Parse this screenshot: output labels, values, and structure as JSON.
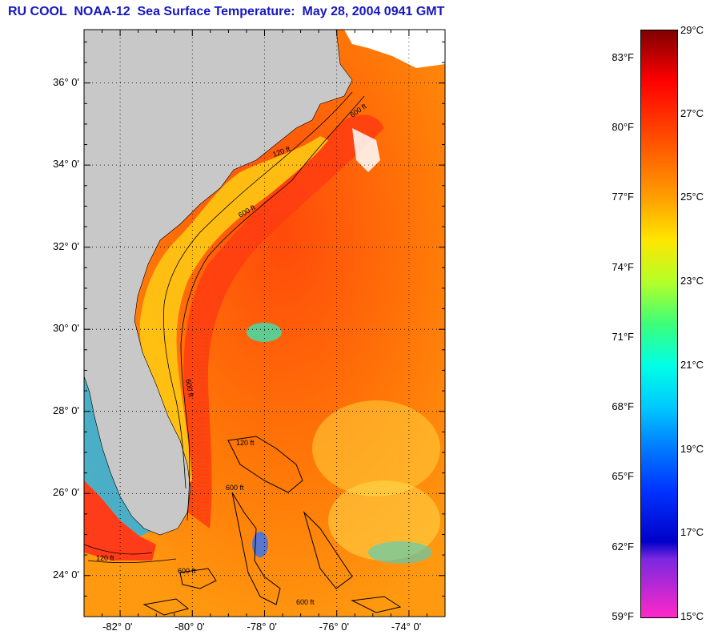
{
  "title": "RU COOL  NOAA-12  Sea Surface Temperature:  May 28, 2004 0941 GMT",
  "map": {
    "region": "US Southeast Atlantic coast",
    "lat_labels": [
      "36° 0'",
      "34° 0'",
      "32° 0'",
      "30° 0'",
      "28° 0'",
      "26° 0'",
      "24° 0'"
    ],
    "lon_labels": [
      "-82° 0'",
      "-80° 0'",
      "-78° 0'",
      "-76° 0'",
      "-74° 0'"
    ],
    "lat_values": [
      36,
      34,
      32,
      30,
      28,
      26,
      24
    ],
    "lon_values": [
      -82,
      -80,
      -78,
      -76,
      -74
    ],
    "lat_range": [
      23,
      37.3
    ],
    "lon_range": [
      -83,
      -73
    ],
    "contour_labels": [
      "600 ft",
      "120 ft",
      "600 ft",
      "600 ft",
      "120 ft",
      "600 ft",
      "600 ft",
      "600 ft",
      "120 ft"
    ],
    "colors": {
      "land": "#c8c8c8",
      "ocean_warm": "#ff5a10",
      "ocean_mid": "#ff8c00",
      "coastal": "#ffc800",
      "grid": "#000000"
    }
  },
  "colorbar": {
    "fahrenheit_labels": [
      "83°F",
      "80°F",
      "77°F",
      "74°F",
      "71°F",
      "68°F",
      "65°F",
      "62°F",
      "59°F"
    ],
    "fahrenheit_values": [
      83,
      80,
      77,
      74,
      71,
      68,
      65,
      62,
      59
    ],
    "celsius_labels": [
      "29°C",
      "27°C",
      "25°C",
      "23°C",
      "21°C",
      "19°C",
      "17°C",
      "15°C"
    ],
    "celsius_values": [
      29,
      27,
      25,
      23,
      21,
      19,
      17,
      15
    ],
    "range_c": [
      15,
      29
    ],
    "stops": [
      {
        "c": 29,
        "color": "#800000"
      },
      {
        "c": 27.8,
        "color": "#ff0000"
      },
      {
        "c": 26.2,
        "color": "#ff5a00"
      },
      {
        "c": 25,
        "color": "#ffa000"
      },
      {
        "c": 24,
        "color": "#ffe600"
      },
      {
        "c": 23,
        "color": "#b4ff28"
      },
      {
        "c": 22,
        "color": "#3cff7a"
      },
      {
        "c": 21,
        "color": "#00ffe6"
      },
      {
        "c": 20,
        "color": "#00c8ff"
      },
      {
        "c": 19,
        "color": "#0078ff"
      },
      {
        "c": 18,
        "color": "#0032ff"
      },
      {
        "c": 16.8,
        "color": "#0000c8"
      },
      {
        "c": 16.4,
        "color": "#7a28e0"
      },
      {
        "c": 15,
        "color": "#ff28c8"
      }
    ]
  }
}
